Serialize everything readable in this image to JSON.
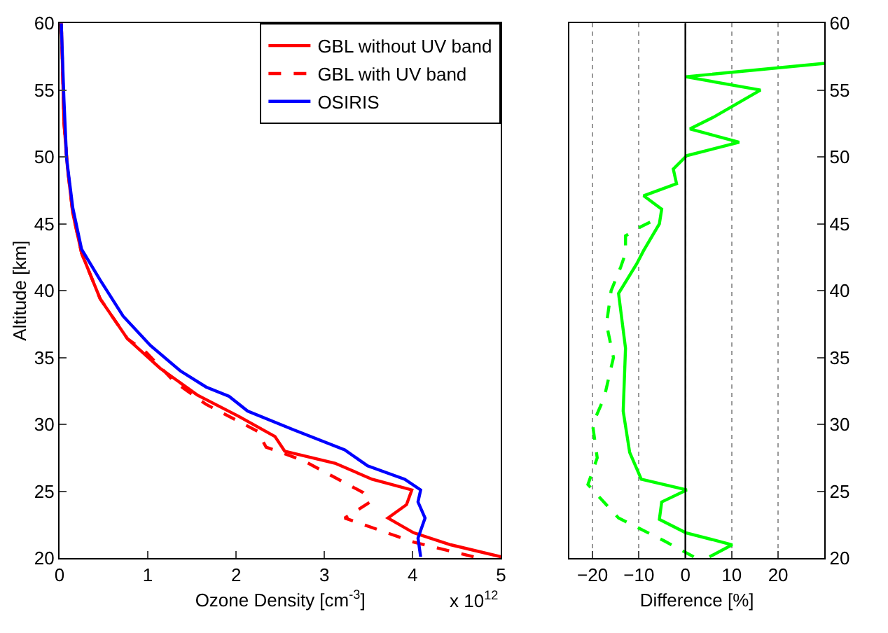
{
  "chart_data": [
    {
      "type": "line",
      "xlabel": "Ozone Density [cm$^{-3}$]",
      "ylabel": "Altitude [km]",
      "xlim": [
        0,
        5
      ],
      "xticks": [
        0,
        1,
        2,
        3,
        4,
        5
      ],
      "ylim": [
        20,
        60
      ],
      "yticks": [
        20,
        25,
        30,
        35,
        40,
        45,
        50,
        55,
        60
      ],
      "grid": false,
      "legend": "top right",
      "annotations": [
        "x 10$^{12}$"
      ],
      "series": [
        {
          "name": "GBL without UV band",
          "color": "#ff0000",
          "line_style": "solid",
          "x": [
            5.0,
            4.43,
            4.01,
            3.72,
            3.93,
            3.99,
            3.54,
            3.12,
            2.55,
            2.44,
            2.03,
            1.56,
            1.14,
            0.77,
            0.46,
            0.25,
            0.15,
            0.09,
            0.05,
            0.03,
            0.02
          ],
          "values": [
            20.1,
            21.0,
            21.9,
            23.0,
            24.0,
            25.1,
            25.9,
            27.1,
            28.0,
            29.1,
            30.6,
            32.2,
            34.2,
            36.4,
            39.4,
            42.8,
            45.8,
            49.2,
            52.6,
            57.7,
            60
          ]
        },
        {
          "name": "GBL with UV band",
          "color": "#ff0000",
          "line_style": "dashed",
          "x": [
            4.69,
            4.01,
            3.23,
            3.52,
            3.44,
            2.76,
            2.34,
            2.24,
            1.66,
            1.3,
            0.98,
            0.77,
            0.46,
            0.25,
            0.15,
            0.09,
            0.05,
            0.03,
            0.02
          ],
          "values": [
            20.1,
            21.2,
            23.0,
            24.2,
            24.9,
            27.3,
            28.3,
            29.5,
            31.5,
            33.2,
            35.4,
            36.4,
            39.4,
            42.8,
            45.8,
            49.2,
            52.6,
            57.7,
            60
          ]
        },
        {
          "name": "OSIRIS",
          "color": "#0000ff",
          "line_style": "solid",
          "x": [
            4.09,
            4.06,
            4.14,
            4.06,
            4.09,
            3.91,
            3.49,
            3.23,
            2.65,
            2.13,
            1.92,
            1.66,
            1.37,
            1.03,
            0.72,
            0.46,
            0.25,
            0.15,
            0.08,
            0.05,
            0.02
          ],
          "values": [
            20.1,
            21.5,
            23.0,
            24.2,
            25.1,
            25.9,
            26.9,
            28.1,
            29.6,
            31.0,
            32.1,
            32.8,
            34.0,
            35.9,
            38.1,
            40.8,
            43.1,
            46.2,
            49.9,
            54.3,
            60
          ]
        }
      ]
    },
    {
      "type": "line",
      "xlabel": "Difference [%]",
      "xlim": [
        -25,
        30
      ],
      "xticks": [
        -20,
        -10,
        0,
        10,
        20
      ],
      "ylim": [
        20,
        60
      ],
      "yticks": [
        20,
        25,
        30,
        35,
        40,
        45,
        50,
        55,
        60
      ],
      "grid": "x",
      "legend": false,
      "ref_lines": [
        {
          "axis": "x",
          "value": 0,
          "color": "#000000"
        }
      ],
      "series": [
        {
          "color": "#00ff00",
          "line_style": "solid",
          "x": [
            5.2,
            10.1,
            0.1,
            -5.6,
            -5.1,
            0.3,
            -9.5,
            -12.0,
            -13.4,
            -12.9,
            -14.4,
            -10.5,
            -9.0,
            -5.6,
            -5.1,
            -9.0,
            -1.9,
            -2.6,
            0.3,
            11.6,
            1.0,
            6.2,
            16.2,
            0.1,
            30
          ],
          "values": [
            20.1,
            21.0,
            21.9,
            22.9,
            24.2,
            25.1,
            25.9,
            27.9,
            31.0,
            35.7,
            39.8,
            42.0,
            43.0,
            45.0,
            46.1,
            47.1,
            48.0,
            49.1,
            50.1,
            51.1,
            52.1,
            53.0,
            55.0,
            56.0,
            57.0
          ]
        },
        {
          "color": "#00ff00",
          "line_style": "dashed",
          "x": [
            1.8,
            -4.6,
            -14.4,
            -21,
            -19,
            -20,
            -17.5,
            -15.5,
            -17,
            -16,
            -13.9,
            -12.9,
            -12.9,
            -9.5,
            -6.6
          ],
          "values": [
            20.1,
            21.3,
            23.0,
            25.5,
            27.5,
            30,
            32,
            35,
            37.5,
            40,
            41.8,
            42.8,
            44.1,
            44.8,
            45.3
          ]
        }
      ]
    }
  ]
}
